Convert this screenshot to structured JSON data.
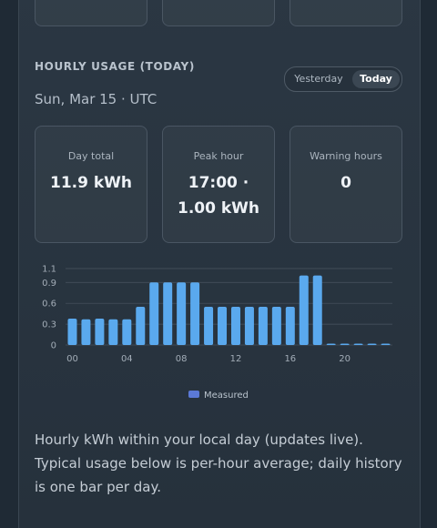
{
  "section": {
    "title": "HOURLY USAGE (TODAY)",
    "date": "Sun, Mar 15 · UTC"
  },
  "toggle": {
    "yesterday": "Yesterday",
    "today": "Today",
    "selected": "Today"
  },
  "cards": [
    {
      "label": "Day total",
      "value": "11.9 kWh"
    },
    {
      "label": "Peak hour",
      "value": "17:00 · 1.00 kWh"
    },
    {
      "label": "Warning hours",
      "value": "0"
    }
  ],
  "description": "Hourly kWh within your local day (updates live). Typical usage below is per-hour average; daily history is one bar per day.",
  "colors": {
    "bar": "#5aa9ee",
    "legend": "#5b79d6",
    "grid": "#4a5561"
  },
  "chart_data": {
    "type": "bar",
    "x": [
      0,
      1,
      2,
      3,
      4,
      5,
      6,
      7,
      8,
      9,
      10,
      11,
      12,
      13,
      14,
      15,
      16,
      17,
      18,
      19,
      20,
      21,
      22,
      23
    ],
    "x_tick_labels": [
      "00",
      "04",
      "08",
      "12",
      "16",
      "20"
    ],
    "y_tick_labels": [
      "0",
      "0.3",
      "0.6",
      "0.9",
      "1.1"
    ],
    "ylim": [
      0,
      1.1
    ],
    "series": [
      {
        "name": "Measured",
        "values": [
          0.38,
          0.37,
          0.38,
          0.37,
          0.37,
          0.55,
          0.9,
          0.9,
          0.9,
          0.9,
          0.55,
          0.55,
          0.55,
          0.55,
          0.55,
          0.55,
          0.55,
          1.0,
          1.0,
          0.02,
          0.02,
          0.02,
          0.02,
          0.02
        ]
      }
    ],
    "legend_position": "bottom-center",
    "grid": true
  }
}
